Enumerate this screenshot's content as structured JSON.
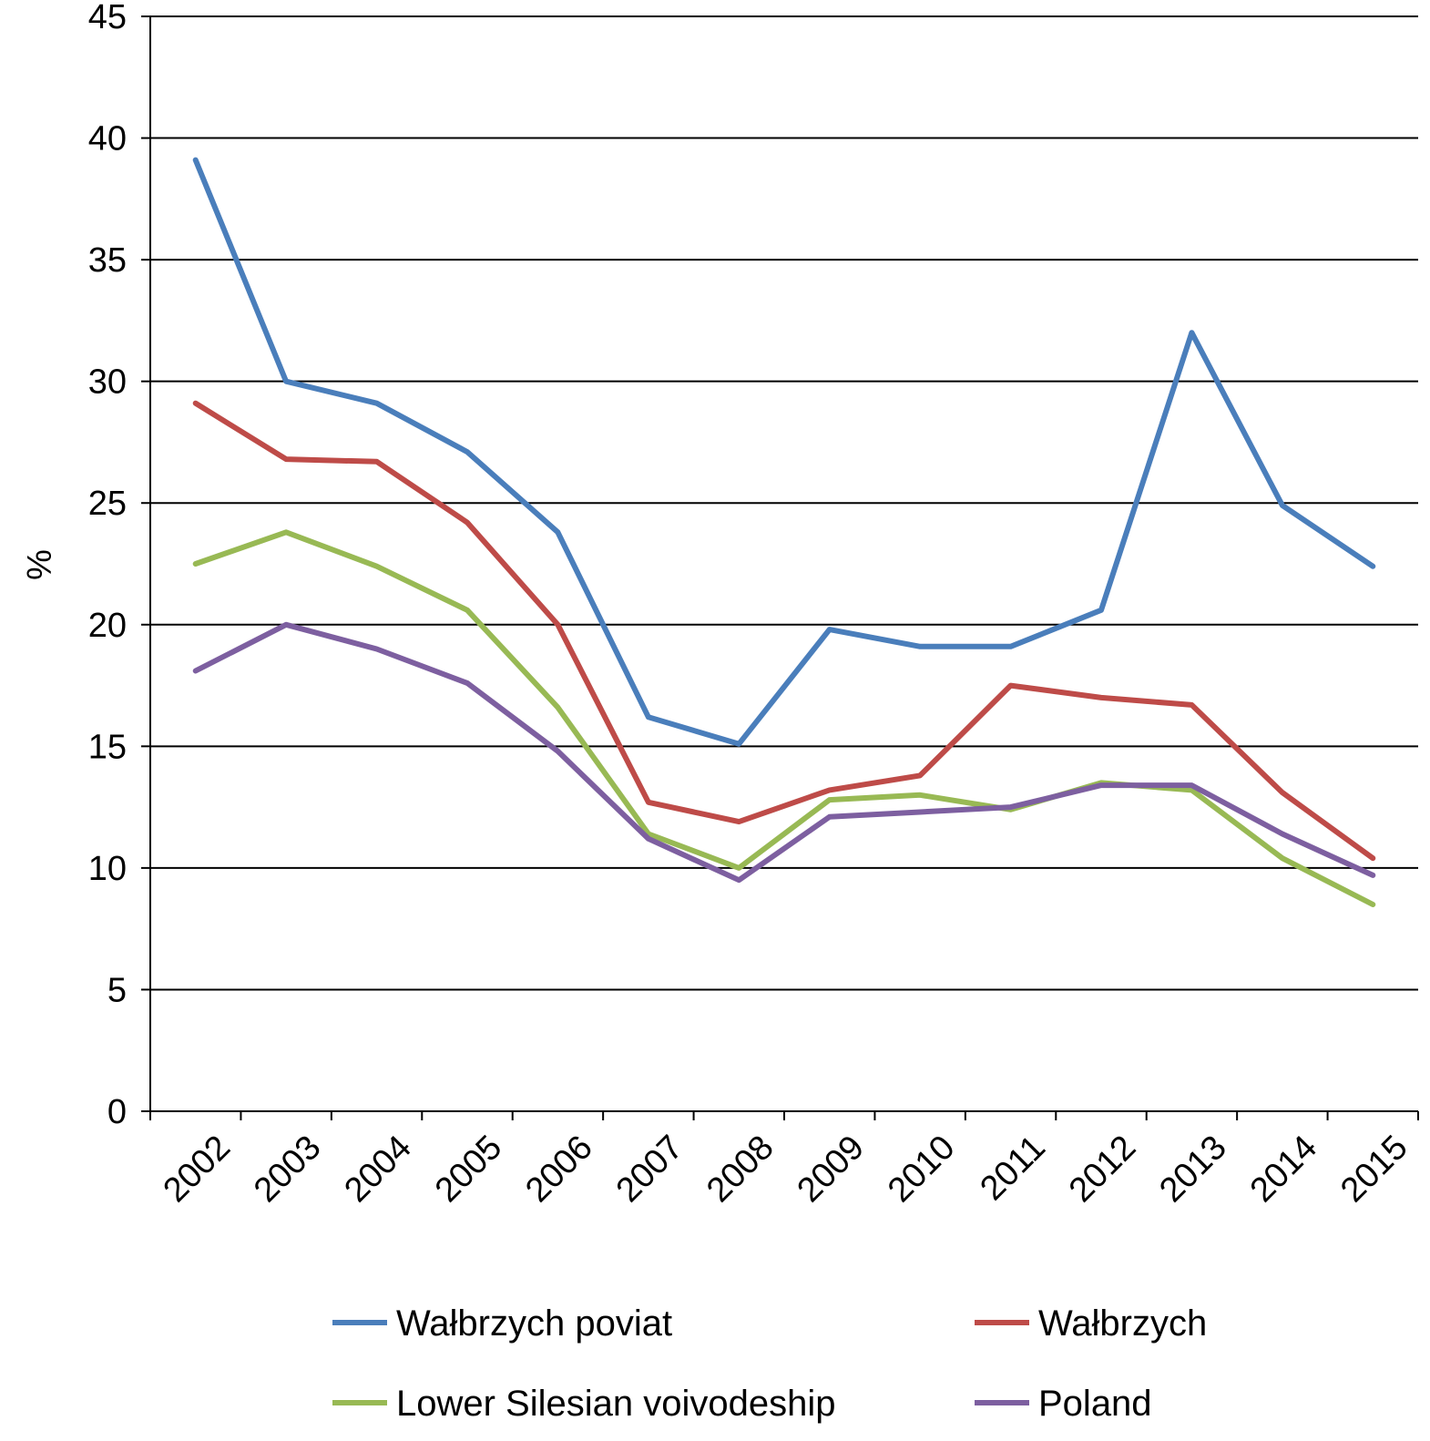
{
  "chart_data": {
    "type": "line",
    "title": "",
    "xlabel": "",
    "ylabel": "%",
    "ylim": [
      0,
      45
    ],
    "yticks": [
      "0",
      "5",
      "10",
      "15",
      "20",
      "25",
      "30",
      "35",
      "40",
      "45"
    ],
    "grid": true,
    "legend_position": "bottom",
    "categories": [
      "2002",
      "2003",
      "2004",
      "2005",
      "2006",
      "2007",
      "2008",
      "2009",
      "2010",
      "2011",
      "2012",
      "2013",
      "2014",
      "2015"
    ],
    "series": [
      {
        "name": "Wałbrzych poviat",
        "color": "#4A7EBB",
        "values": [
          39.1,
          30.0,
          29.1,
          27.1,
          23.8,
          16.2,
          15.1,
          19.8,
          19.1,
          19.1,
          20.6,
          32.0,
          24.9,
          22.4
        ]
      },
      {
        "name": "Wałbrzych",
        "color": "#BE4B48",
        "values": [
          29.1,
          26.8,
          26.7,
          24.2,
          20.0,
          12.7,
          11.9,
          13.2,
          13.8,
          17.5,
          17.0,
          16.7,
          13.1,
          10.4
        ]
      },
      {
        "name": "Lower Silesian voivodeship",
        "color": "#98B954",
        "values": [
          22.5,
          23.8,
          22.4,
          20.6,
          16.6,
          11.4,
          10.0,
          12.8,
          13.0,
          12.4,
          13.5,
          13.2,
          10.4,
          8.5
        ]
      },
      {
        "name": "Poland",
        "color": "#7D5FA0",
        "values": [
          18.1,
          20.0,
          19.0,
          17.6,
          14.8,
          11.2,
          9.5,
          12.1,
          12.3,
          12.5,
          13.4,
          13.4,
          11.4,
          9.7
        ]
      }
    ]
  }
}
